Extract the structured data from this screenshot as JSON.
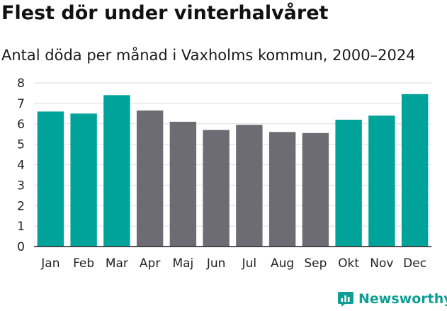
{
  "colors": {
    "winter": "#00a39a",
    "summer": "#6d6c73",
    "grid": "#dedede",
    "axis": "#222222",
    "brand": "#0f9e93"
  },
  "brand": {
    "name": "Newsworthy",
    "icon": "newsworthy-logo-icon"
  },
  "chart_data": {
    "type": "bar",
    "title": "Flest dör under vinterhalvåret",
    "subtitle": "Antal döda per månad i Vaxholms kommun, 2000–2024",
    "xlabel": "",
    "ylabel": "",
    "categories": [
      "Jan",
      "Feb",
      "Mar",
      "Apr",
      "Maj",
      "Jun",
      "Jul",
      "Aug",
      "Sep",
      "Okt",
      "Nov",
      "Dec"
    ],
    "values": [
      6.6,
      6.5,
      7.4,
      6.65,
      6.1,
      5.7,
      5.95,
      5.6,
      5.55,
      6.2,
      6.4,
      7.45
    ],
    "groups": [
      "winter",
      "winter",
      "winter",
      "summer",
      "summer",
      "summer",
      "summer",
      "summer",
      "summer",
      "winter",
      "winter",
      "winter"
    ],
    "ylim": [
      0,
      8
    ],
    "yticks": [
      "0",
      "1",
      "2",
      "3",
      "4",
      "5",
      "6",
      "7",
      "8"
    ],
    "grid": true,
    "legend": "none"
  }
}
